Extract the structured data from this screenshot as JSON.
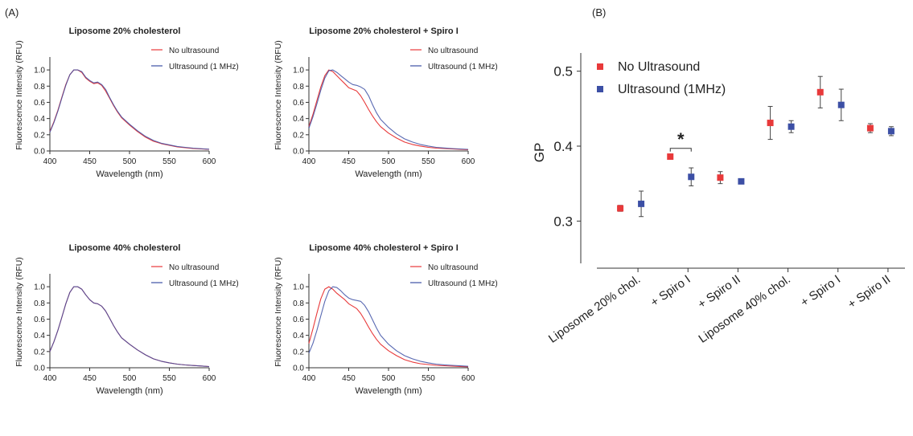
{
  "panels": {
    "a_label": "(A)",
    "b_label": "(B)"
  },
  "colors": {
    "no_ultrasound": "#e8393a",
    "ultrasound": "#3c4fa5",
    "axis": "#333333"
  },
  "chart_data": [
    {
      "type": "line",
      "title": "Liposome 20% cholesterol",
      "xlabel": "Wavelength (nm)",
      "ylabel": "Fluorescence Intensity (RFU)",
      "xlim": [
        400,
        600
      ],
      "ylim": [
        0,
        1.1
      ],
      "xticks": [
        "400",
        "450",
        "500",
        "550",
        "600"
      ],
      "yticks": [
        "0.0",
        "0.2",
        "0.4",
        "0.6",
        "0.8",
        "1.0"
      ],
      "legend": "top-right",
      "series": [
        {
          "name": "No ultrasound",
          "x": [
            400,
            405,
            410,
            415,
            420,
            425,
            430,
            435,
            440,
            445,
            450,
            455,
            460,
            465,
            470,
            475,
            480,
            485,
            490,
            500,
            510,
            520,
            530,
            540,
            550,
            560,
            570,
            580,
            590,
            600
          ],
          "values": [
            0.24,
            0.36,
            0.5,
            0.66,
            0.82,
            0.94,
            1.0,
            1.0,
            0.97,
            0.9,
            0.86,
            0.83,
            0.84,
            0.81,
            0.74,
            0.65,
            0.56,
            0.48,
            0.41,
            0.32,
            0.24,
            0.17,
            0.12,
            0.09,
            0.07,
            0.05,
            0.04,
            0.03,
            0.025,
            0.02
          ]
        },
        {
          "name": "Ultrasound (1 MHz)",
          "x": [
            400,
            405,
            410,
            415,
            420,
            425,
            430,
            435,
            440,
            445,
            450,
            455,
            460,
            465,
            470,
            475,
            480,
            485,
            490,
            500,
            510,
            520,
            530,
            540,
            550,
            560,
            570,
            580,
            590,
            600
          ],
          "values": [
            0.23,
            0.35,
            0.49,
            0.65,
            0.81,
            0.94,
            1.0,
            1.0,
            0.98,
            0.91,
            0.87,
            0.84,
            0.85,
            0.82,
            0.76,
            0.66,
            0.57,
            0.49,
            0.42,
            0.33,
            0.25,
            0.18,
            0.13,
            0.095,
            0.075,
            0.055,
            0.045,
            0.035,
            0.028,
            0.022
          ]
        }
      ]
    },
    {
      "type": "line",
      "title": "Liposome 20% cholesterol + Spiro I",
      "xlabel": "Wavelength (nm)",
      "ylabel": "Fluorescence Intensity (RFU)",
      "xlim": [
        400,
        600
      ],
      "ylim": [
        0,
        1.1
      ],
      "xticks": [
        "400",
        "450",
        "500",
        "550",
        "600"
      ],
      "yticks": [
        "0.0",
        "0.2",
        "0.4",
        "0.6",
        "0.8",
        "1.0"
      ],
      "legend": "top-right",
      "series": [
        {
          "name": "No ultrasound",
          "x": [
            400,
            405,
            410,
            415,
            420,
            425,
            430,
            435,
            440,
            445,
            450,
            455,
            460,
            465,
            470,
            475,
            480,
            485,
            490,
            500,
            510,
            520,
            530,
            540,
            550,
            560,
            570,
            580,
            590,
            600
          ],
          "values": [
            0.3,
            0.45,
            0.62,
            0.79,
            0.93,
            1.0,
            0.98,
            0.93,
            0.88,
            0.83,
            0.78,
            0.76,
            0.74,
            0.68,
            0.6,
            0.51,
            0.43,
            0.36,
            0.3,
            0.22,
            0.16,
            0.11,
            0.08,
            0.06,
            0.045,
            0.035,
            0.03,
            0.025,
            0.02,
            0.015
          ]
        },
        {
          "name": "Ultrasound (1 MHz)",
          "x": [
            400,
            405,
            410,
            415,
            420,
            425,
            430,
            435,
            440,
            445,
            450,
            455,
            460,
            465,
            470,
            475,
            480,
            485,
            490,
            500,
            510,
            520,
            530,
            540,
            550,
            560,
            570,
            580,
            590,
            600
          ],
          "values": [
            0.28,
            0.42,
            0.58,
            0.75,
            0.9,
            0.99,
            1.0,
            0.97,
            0.93,
            0.89,
            0.85,
            0.82,
            0.81,
            0.79,
            0.76,
            0.68,
            0.57,
            0.47,
            0.39,
            0.29,
            0.21,
            0.15,
            0.11,
            0.08,
            0.06,
            0.045,
            0.037,
            0.03,
            0.025,
            0.02
          ]
        }
      ]
    },
    {
      "type": "line",
      "title": "Liposome 40% cholesterol",
      "xlabel": "Wavelength (nm)",
      "ylabel": "Fluorescence Intensity (RFU)",
      "xlim": [
        400,
        600
      ],
      "ylim": [
        0,
        1.1
      ],
      "xticks": [
        "400",
        "450",
        "500",
        "550",
        "600"
      ],
      "yticks": [
        "0.0",
        "0.2",
        "0.4",
        "0.6",
        "0.8",
        "1.0"
      ],
      "legend": "top-right",
      "series": [
        {
          "name": "No ultrasound",
          "x": [
            400,
            405,
            410,
            415,
            420,
            425,
            430,
            435,
            440,
            445,
            450,
            455,
            460,
            465,
            470,
            475,
            480,
            485,
            490,
            500,
            510,
            520,
            530,
            540,
            550,
            560,
            570,
            580,
            590,
            600
          ],
          "values": [
            0.2,
            0.32,
            0.46,
            0.62,
            0.79,
            0.93,
            1.0,
            1.0,
            0.97,
            0.9,
            0.84,
            0.8,
            0.79,
            0.76,
            0.7,
            0.61,
            0.52,
            0.44,
            0.37,
            0.29,
            0.22,
            0.16,
            0.11,
            0.08,
            0.06,
            0.045,
            0.035,
            0.028,
            0.022,
            0.015
          ]
        },
        {
          "name": "Ultrasound (1 MHz)",
          "x": [
            400,
            405,
            410,
            415,
            420,
            425,
            430,
            435,
            440,
            445,
            450,
            455,
            460,
            465,
            470,
            475,
            480,
            485,
            490,
            500,
            510,
            520,
            530,
            540,
            550,
            560,
            570,
            580,
            590,
            600
          ],
          "values": [
            0.2,
            0.32,
            0.46,
            0.62,
            0.79,
            0.93,
            1.0,
            1.0,
            0.97,
            0.9,
            0.84,
            0.8,
            0.79,
            0.76,
            0.7,
            0.61,
            0.52,
            0.44,
            0.37,
            0.29,
            0.22,
            0.16,
            0.11,
            0.08,
            0.06,
            0.045,
            0.035,
            0.028,
            0.022,
            0.015
          ]
        }
      ]
    },
    {
      "type": "line",
      "title": "Liposome 40% cholesterol + Spiro I",
      "xlabel": "Wavelength (nm)",
      "ylabel": "Fluorescence Intensity (RFU)",
      "xlim": [
        400,
        600
      ],
      "ylim": [
        0,
        1.1
      ],
      "xticks": [
        "400",
        "450",
        "500",
        "550",
        "600"
      ],
      "yticks": [
        "0.0",
        "0.2",
        "0.4",
        "0.6",
        "0.8",
        "1.0"
      ],
      "legend": "top-right",
      "series": [
        {
          "name": "No ultrasound",
          "x": [
            400,
            405,
            410,
            415,
            420,
            425,
            430,
            435,
            440,
            445,
            450,
            455,
            460,
            465,
            470,
            475,
            480,
            485,
            490,
            500,
            510,
            520,
            530,
            540,
            550,
            560,
            570,
            580,
            590,
            600
          ],
          "values": [
            0.3,
            0.48,
            0.67,
            0.85,
            0.97,
            1.0,
            0.97,
            0.92,
            0.88,
            0.84,
            0.79,
            0.76,
            0.73,
            0.67,
            0.59,
            0.5,
            0.42,
            0.35,
            0.29,
            0.21,
            0.15,
            0.1,
            0.07,
            0.05,
            0.04,
            0.03,
            0.025,
            0.02,
            0.016,
            0.012
          ]
        },
        {
          "name": "Ultrasound (1 MHz)",
          "x": [
            400,
            405,
            410,
            415,
            420,
            425,
            430,
            435,
            440,
            445,
            450,
            455,
            460,
            465,
            470,
            475,
            480,
            485,
            490,
            500,
            510,
            520,
            530,
            540,
            550,
            560,
            570,
            580,
            590,
            600
          ],
          "values": [
            0.18,
            0.3,
            0.46,
            0.64,
            0.82,
            0.95,
            1.0,
            0.99,
            0.95,
            0.9,
            0.86,
            0.84,
            0.83,
            0.82,
            0.77,
            0.69,
            0.59,
            0.49,
            0.4,
            0.29,
            0.21,
            0.15,
            0.11,
            0.08,
            0.06,
            0.045,
            0.036,
            0.03,
            0.024,
            0.018
          ]
        }
      ]
    },
    {
      "type": "scatter",
      "ylabel": "GP",
      "ylim": [
        0.25,
        0.52
      ],
      "yticks": [
        "0.3",
        "0.4",
        "0.5"
      ],
      "categories": [
        "Liposome 20% chol.",
        "+ Spiro I",
        "+ Spiro II",
        "Liposome 40% chol.",
        "+ Spiro I",
        "+ Spiro II"
      ],
      "legend": "top-left",
      "annotations": [
        "*"
      ],
      "series": [
        {
          "name": "No Ultrasound",
          "values": [
            0.317,
            0.386,
            0.358,
            0.431,
            0.472,
            0.424
          ],
          "err": [
            0.004,
            0.0,
            0.008,
            0.022,
            0.021,
            0.006
          ]
        },
        {
          "name": "Ultrasound (1MHz)",
          "values": [
            0.323,
            0.359,
            0.353,
            0.426,
            0.455,
            0.42
          ],
          "err": [
            0.017,
            0.012,
            0.0,
            0.008,
            0.021,
            0.006
          ]
        }
      ]
    }
  ]
}
